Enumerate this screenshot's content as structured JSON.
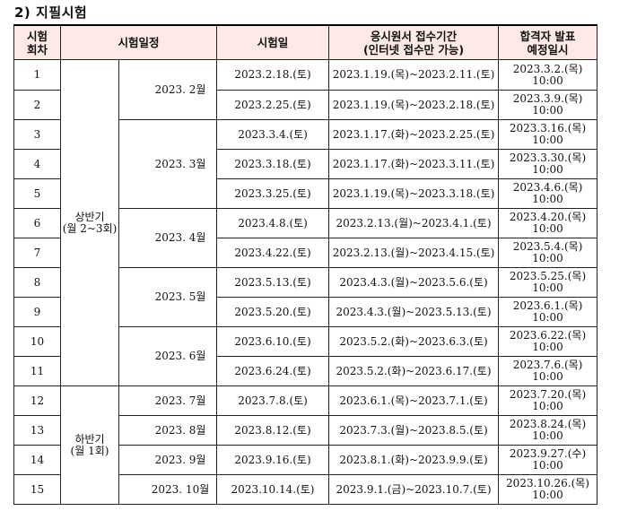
{
  "heading": "2) 지필시험",
  "header": {
    "round": [
      "시험",
      "회차"
    ],
    "schedule": "시험일정",
    "exam_date": "시험일",
    "application": [
      "응시원서 접수기간",
      "(인터넷 접수만 가능)"
    ],
    "result": [
      "합격자 발표",
      "예정일시"
    ]
  },
  "halves": [
    {
      "label": [
        "상반기",
        "(월 2~3회)"
      ]
    },
    {
      "label": [
        "하반기",
        "(월 1회)"
      ]
    }
  ],
  "months": [
    "2023. 2월",
    "2023. 3월",
    "2023. 4월",
    "2023. 5월",
    "2023. 6월",
    "2023. 7월",
    "2023. 8월",
    "2023. 9월",
    "2023. 10월"
  ],
  "rows": [
    {
      "round": "1",
      "date": "2023.2.18.(토)",
      "apply": "2023.1.19.(목)~2023.2.11.(토)",
      "notice": [
        "2023.3.2.(목)",
        "10:00"
      ]
    },
    {
      "round": "2",
      "date": "2023.2.25.(토)",
      "apply": "2023.1.19.(목)~2023.2.18.(토)",
      "notice": [
        "2023.3.9.(목)",
        "10:00"
      ]
    },
    {
      "round": "3",
      "date": "2023.3.4.(토)",
      "apply": "2023.1.17.(화)~2023.2.25.(토)",
      "notice": [
        "2023.3.16.(목)",
        "10:00"
      ]
    },
    {
      "round": "4",
      "date": "2023.3.18.(토)",
      "apply": "2023.1.17.(화)~2023.3.11.(토)",
      "notice": [
        "2023.3.30.(목)",
        "10:00"
      ]
    },
    {
      "round": "5",
      "date": "2023.3.25.(토)",
      "apply": "2023.1.19.(목)~2023.3.18.(토)",
      "notice": [
        "2023.4.6.(목)",
        "10:00"
      ]
    },
    {
      "round": "6",
      "date": "2023.4.8.(토)",
      "apply": "2023.2.13.(월)~2023.4.1.(토)",
      "notice": [
        "2023.4.20.(목)",
        "10:00"
      ]
    },
    {
      "round": "7",
      "date": "2023.4.22.(토)",
      "apply": "2023.2.13.(월)~2023.4.15.(토)",
      "notice": [
        "2023.5.4.(목)",
        "10:00"
      ]
    },
    {
      "round": "8",
      "date": "2023.5.13.(토)",
      "apply": "2023.4.3.(월)~2023.5.6.(토)",
      "notice": [
        "2023.5.25.(목)",
        "10:00"
      ]
    },
    {
      "round": "9",
      "date": "2023.5.20.(토)",
      "apply": "2023.4.3.(월)~2023.5.13.(토)",
      "notice": [
        "2023.6.1.(목)",
        "10:00"
      ]
    },
    {
      "round": "10",
      "date": "2023.6.10.(토)",
      "apply": "2023.5.2.(화)~2023.6.3.(토)",
      "notice": [
        "2023.6.22.(목)",
        "10:00"
      ]
    },
    {
      "round": "11",
      "date": "2023.6.24.(토)",
      "apply": "2023.5.2.(화)~2023.6.17.(토)",
      "notice": [
        "2023.7.6.(목)",
        "10:00"
      ]
    },
    {
      "round": "12",
      "date": "2023.7.8.(토)",
      "apply": "2023.6.1.(목)~2023.7.1.(토)",
      "notice": [
        "2023.7.20.(목)",
        "10:00"
      ]
    },
    {
      "round": "13",
      "date": "2023.8.12.(토)",
      "apply": "2023.7.3.(월)~2023.8.5.(토)",
      "notice": [
        "2023.8.24.(목)",
        "10:00"
      ]
    },
    {
      "round": "14",
      "date": "2023.9.16.(토)",
      "apply": "2023.8.1.(화)~2023.9.9.(토)",
      "notice": [
        "2023.9.27.(수)",
        "10:00"
      ]
    },
    {
      "round": "15",
      "date": "2023.10.14.(토)",
      "apply": "2023.9.1.(금)~2023.10.7.(토)",
      "notice": [
        "2023.10.26.(목)",
        "10:00"
      ]
    }
  ]
}
